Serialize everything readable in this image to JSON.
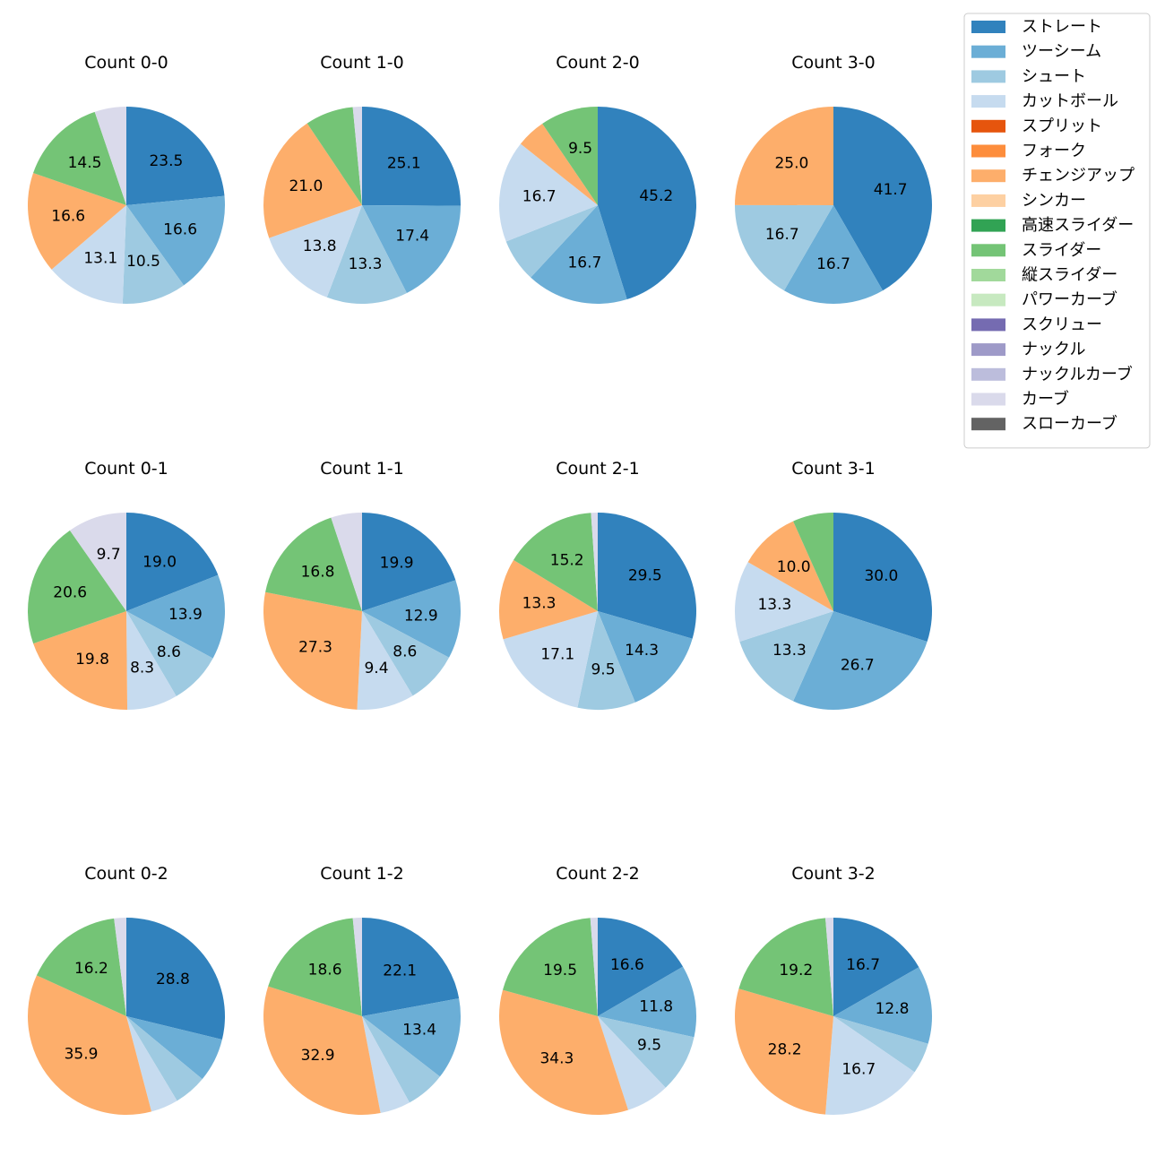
{
  "chart_data": {
    "type": "pie",
    "pitch_types": [
      {
        "name": "ストレート",
        "color": "#3182bd"
      },
      {
        "name": "ツーシーム",
        "color": "#6baed6"
      },
      {
        "name": "シュート",
        "color": "#9ecae1"
      },
      {
        "name": "カットボール",
        "color": "#c6dbef"
      },
      {
        "name": "スプリット",
        "color": "#e6550d"
      },
      {
        "name": "フォーク",
        "color": "#fd8d3c"
      },
      {
        "name": "チェンジアップ",
        "color": "#fdae6b"
      },
      {
        "name": "シンカー",
        "color": "#fdd0a2"
      },
      {
        "name": "高速スライダー",
        "color": "#31a354"
      },
      {
        "name": "スライダー",
        "color": "#74c476"
      },
      {
        "name": "縦スライダー",
        "color": "#a1d99b"
      },
      {
        "name": "パワーカーブ",
        "color": "#c7e9c0"
      },
      {
        "name": "スクリュー",
        "color": "#756bb1"
      },
      {
        "name": "ナックル",
        "color": "#9e9ac8"
      },
      {
        "name": "ナックルカーブ",
        "color": "#bcbddc"
      },
      {
        "name": "カーブ",
        "color": "#dadaeb"
      },
      {
        "name": "スローカーブ",
        "color": "#636363"
      }
    ],
    "legend_position": "top-right",
    "charts": [
      {
        "title": "Count 0-0",
        "slices": [
          {
            "pitch": "ストレート",
            "value": 23.5,
            "label": "23.5"
          },
          {
            "pitch": "ツーシーム",
            "value": 16.6,
            "label": "16.6"
          },
          {
            "pitch": "シュート",
            "value": 10.5,
            "label": "10.5"
          },
          {
            "pitch": "カットボール",
            "value": 13.1,
            "label": "13.1"
          },
          {
            "pitch": "チェンジアップ",
            "value": 16.6,
            "label": "16.6"
          },
          {
            "pitch": "スライダー",
            "value": 14.5,
            "label": "14.5"
          },
          {
            "pitch": "カーブ",
            "value": 5.2,
            "label": ""
          }
        ]
      },
      {
        "title": "Count 1-0",
        "slices": [
          {
            "pitch": "ストレート",
            "value": 25.1,
            "label": "25.1"
          },
          {
            "pitch": "ツーシーム",
            "value": 17.4,
            "label": "17.4"
          },
          {
            "pitch": "シュート",
            "value": 13.3,
            "label": "13.3"
          },
          {
            "pitch": "カットボール",
            "value": 13.8,
            "label": "13.8"
          },
          {
            "pitch": "チェンジアップ",
            "value": 21.0,
            "label": "21.0"
          },
          {
            "pitch": "スライダー",
            "value": 7.9,
            "label": ""
          },
          {
            "pitch": "カーブ",
            "value": 1.5,
            "label": ""
          }
        ]
      },
      {
        "title": "Count 2-0",
        "slices": [
          {
            "pitch": "ストレート",
            "value": 45.2,
            "label": "45.2"
          },
          {
            "pitch": "ツーシーム",
            "value": 16.7,
            "label": "16.7"
          },
          {
            "pitch": "シュート",
            "value": 7.1,
            "label": ""
          },
          {
            "pitch": "カットボール",
            "value": 16.7,
            "label": "16.7"
          },
          {
            "pitch": "チェンジアップ",
            "value": 4.8,
            "label": ""
          },
          {
            "pitch": "スライダー",
            "value": 9.5,
            "label": "9.5"
          }
        ]
      },
      {
        "title": "Count 3-0",
        "slices": [
          {
            "pitch": "ストレート",
            "value": 41.7,
            "label": "41.7"
          },
          {
            "pitch": "ツーシーム",
            "value": 16.7,
            "label": "16.7"
          },
          {
            "pitch": "シュート",
            "value": 16.7,
            "label": "16.7"
          },
          {
            "pitch": "チェンジアップ",
            "value": 25.0,
            "label": "25.0"
          }
        ]
      },
      {
        "title": "Count 0-1",
        "slices": [
          {
            "pitch": "ストレート",
            "value": 19.0,
            "label": "19.0"
          },
          {
            "pitch": "ツーシーム",
            "value": 13.9,
            "label": "13.9"
          },
          {
            "pitch": "シュート",
            "value": 8.6,
            "label": "8.6"
          },
          {
            "pitch": "カットボール",
            "value": 8.3,
            "label": "8.3"
          },
          {
            "pitch": "チェンジアップ",
            "value": 19.8,
            "label": "19.8"
          },
          {
            "pitch": "スライダー",
            "value": 20.6,
            "label": "20.6"
          },
          {
            "pitch": "カーブ",
            "value": 9.7,
            "label": "9.7"
          }
        ]
      },
      {
        "title": "Count 1-1",
        "slices": [
          {
            "pitch": "ストレート",
            "value": 19.9,
            "label": "19.9"
          },
          {
            "pitch": "ツーシーム",
            "value": 12.9,
            "label": "12.9"
          },
          {
            "pitch": "シュート",
            "value": 8.6,
            "label": "8.6"
          },
          {
            "pitch": "カットボール",
            "value": 9.4,
            "label": "9.4"
          },
          {
            "pitch": "チェンジアップ",
            "value": 27.3,
            "label": "27.3"
          },
          {
            "pitch": "スライダー",
            "value": 16.8,
            "label": "16.8"
          },
          {
            "pitch": "カーブ",
            "value": 5.1,
            "label": ""
          }
        ]
      },
      {
        "title": "Count 2-1",
        "slices": [
          {
            "pitch": "ストレート",
            "value": 29.5,
            "label": "29.5"
          },
          {
            "pitch": "ツーシーム",
            "value": 14.3,
            "label": "14.3"
          },
          {
            "pitch": "シュート",
            "value": 9.5,
            "label": "9.5"
          },
          {
            "pitch": "カットボール",
            "value": 17.1,
            "label": "17.1"
          },
          {
            "pitch": "チェンジアップ",
            "value": 13.3,
            "label": "13.3"
          },
          {
            "pitch": "スライダー",
            "value": 15.2,
            "label": "15.2"
          },
          {
            "pitch": "カーブ",
            "value": 1.1,
            "label": ""
          }
        ]
      },
      {
        "title": "Count 3-1",
        "slices": [
          {
            "pitch": "ストレート",
            "value": 30.0,
            "label": "30.0"
          },
          {
            "pitch": "ツーシーム",
            "value": 26.7,
            "label": "26.7"
          },
          {
            "pitch": "シュート",
            "value": 13.3,
            "label": "13.3"
          },
          {
            "pitch": "カットボール",
            "value": 13.3,
            "label": "13.3"
          },
          {
            "pitch": "チェンジアップ",
            "value": 10.0,
            "label": "10.0"
          },
          {
            "pitch": "スライダー",
            "value": 6.7,
            "label": ""
          }
        ]
      },
      {
        "title": "Count 0-2",
        "slices": [
          {
            "pitch": "ストレート",
            "value": 28.8,
            "label": "28.8"
          },
          {
            "pitch": "ツーシーム",
            "value": 7.2,
            "label": ""
          },
          {
            "pitch": "シュート",
            "value": 5.4,
            "label": ""
          },
          {
            "pitch": "カットボール",
            "value": 4.5,
            "label": ""
          },
          {
            "pitch": "チェンジアップ",
            "value": 35.9,
            "label": "35.9"
          },
          {
            "pitch": "スライダー",
            "value": 16.2,
            "label": "16.2"
          },
          {
            "pitch": "カーブ",
            "value": 2.0,
            "label": ""
          }
        ]
      },
      {
        "title": "Count 1-2",
        "slices": [
          {
            "pitch": "ストレート",
            "value": 22.1,
            "label": "22.1"
          },
          {
            "pitch": "ツーシーム",
            "value": 13.4,
            "label": "13.4"
          },
          {
            "pitch": "シュート",
            "value": 6.5,
            "label": ""
          },
          {
            "pitch": "カットボール",
            "value": 5.0,
            "label": ""
          },
          {
            "pitch": "チェンジアップ",
            "value": 32.9,
            "label": "32.9"
          },
          {
            "pitch": "スライダー",
            "value": 18.6,
            "label": "18.6"
          },
          {
            "pitch": "カーブ",
            "value": 1.5,
            "label": ""
          }
        ]
      },
      {
        "title": "Count 2-2",
        "slices": [
          {
            "pitch": "ストレート",
            "value": 16.6,
            "label": "16.6"
          },
          {
            "pitch": "ツーシーム",
            "value": 11.8,
            "label": "11.8"
          },
          {
            "pitch": "シュート",
            "value": 9.5,
            "label": "9.5"
          },
          {
            "pitch": "カットボール",
            "value": 7.1,
            "label": ""
          },
          {
            "pitch": "チェンジアップ",
            "value": 34.3,
            "label": "34.3"
          },
          {
            "pitch": "スライダー",
            "value": 19.5,
            "label": "19.5"
          },
          {
            "pitch": "カーブ",
            "value": 1.2,
            "label": ""
          }
        ]
      },
      {
        "title": "Count 3-2",
        "slices": [
          {
            "pitch": "ストレート",
            "value": 16.7,
            "label": "16.7"
          },
          {
            "pitch": "ツーシーム",
            "value": 12.8,
            "label": "12.8"
          },
          {
            "pitch": "シュート",
            "value": 5.1,
            "label": ""
          },
          {
            "pitch": "カットボール",
            "value": 16.7,
            "label": "16.7"
          },
          {
            "pitch": "チェンジアップ",
            "value": 28.2,
            "label": "28.2"
          },
          {
            "pitch": "スライダー",
            "value": 19.2,
            "label": "19.2"
          },
          {
            "pitch": "カーブ",
            "value": 1.3,
            "label": ""
          }
        ]
      }
    ]
  }
}
